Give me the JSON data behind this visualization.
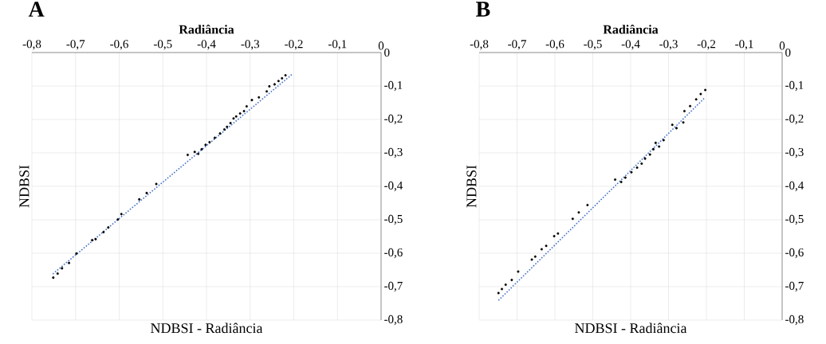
{
  "chart_data": [
    {
      "type": "scatter",
      "title": "Radiância",
      "xlabel": "NDBSI - Radiância",
      "ylabel": "NDBSI",
      "annotations": [
        "A"
      ],
      "grid": true,
      "marker": "circle",
      "xlim": [
        -0.8,
        0
      ],
      "ylim": [
        -0.8,
        0
      ],
      "xticks": [
        {
          "value": -0.8,
          "label": "-0,8"
        },
        {
          "value": -0.7,
          "label": "-0,7"
        },
        {
          "value": -0.6,
          "label": "-0,6"
        },
        {
          "value": -0.5,
          "label": "-0,5"
        },
        {
          "value": -0.4,
          "label": "-0,4"
        },
        {
          "value": -0.3,
          "label": "-0,3"
        },
        {
          "value": -0.2,
          "label": "-0,2"
        },
        {
          "value": -0.1,
          "label": "-0,1"
        },
        0
      ],
      "yticks": [
        {
          "value": -0.8,
          "label": "-0,8"
        },
        {
          "value": -0.7,
          "label": "-0,7"
        },
        {
          "value": -0.6,
          "label": "-0,6"
        },
        {
          "value": -0.5,
          "label": "-0,5"
        },
        {
          "value": -0.4,
          "label": "-0,4"
        },
        {
          "value": -0.3,
          "label": "-0,3"
        },
        {
          "value": -0.2,
          "label": "-0,2"
        },
        {
          "value": -0.1,
          "label": "-0,1"
        },
        0
      ],
      "series": [
        {
          "type": "scatter",
          "color": "#000000",
          "x": [
            -0.751,
            -0.741,
            -0.731,
            -0.715,
            -0.698,
            -0.662,
            -0.654,
            -0.636,
            -0.625,
            -0.603,
            -0.595,
            -0.554,
            -0.537,
            -0.515,
            -0.443,
            -0.427,
            -0.419,
            -0.411,
            -0.402,
            -0.393,
            -0.381,
            -0.369,
            -0.359,
            -0.353,
            -0.345,
            -0.338,
            -0.332,
            -0.323,
            -0.314,
            -0.308,
            -0.296,
            -0.28,
            -0.262,
            -0.256,
            -0.244,
            -0.235,
            -0.227,
            -0.219
          ],
          "values": [
            -0.673,
            -0.661,
            -0.645,
            -0.629,
            -0.601,
            -0.561,
            -0.558,
            -0.537,
            -0.523,
            -0.499,
            -0.483,
            -0.439,
            -0.42,
            -0.393,
            -0.306,
            -0.297,
            -0.303,
            -0.289,
            -0.276,
            -0.268,
            -0.255,
            -0.242,
            -0.23,
            -0.222,
            -0.211,
            -0.197,
            -0.191,
            -0.182,
            -0.175,
            -0.161,
            -0.142,
            -0.134,
            -0.116,
            -0.101,
            -0.095,
            -0.085,
            -0.077,
            -0.068
          ]
        },
        {
          "type": "line",
          "color": "#4472c4",
          "line_style": "dotted",
          "marker": "none",
          "x": [
            -0.752,
            -0.204
          ],
          "values": [
            -0.662,
            -0.065
          ]
        }
      ]
    },
    {
      "type": "scatter",
      "title": "Radiância",
      "xlabel": "NDBSI - Radiância",
      "ylabel": "NDBSI",
      "annotations": [
        "B"
      ],
      "grid": true,
      "marker": "circle",
      "xlim": [
        -0.8,
        0
      ],
      "ylim": [
        -0.8,
        0
      ],
      "xticks": [
        {
          "value": -0.8,
          "label": "-0,8"
        },
        {
          "value": -0.7,
          "label": "-0,7"
        },
        {
          "value": -0.6,
          "label": "-0,6"
        },
        {
          "value": -0.5,
          "label": "-0,5"
        },
        {
          "value": -0.4,
          "label": "-0,4"
        },
        {
          "value": -0.3,
          "label": "-0,3"
        },
        {
          "value": -0.2,
          "label": "-0,2"
        },
        {
          "value": -0.1,
          "label": "-0,1"
        },
        0
      ],
      "yticks": [
        {
          "value": -0.8,
          "label": "-0,8"
        },
        {
          "value": -0.7,
          "label": "-0,7"
        },
        {
          "value": -0.6,
          "label": "-0,6"
        },
        {
          "value": -0.5,
          "label": "-0,5"
        },
        {
          "value": -0.4,
          "label": "-0,4"
        },
        {
          "value": -0.3,
          "label": "-0,3"
        },
        {
          "value": -0.2,
          "label": "-0,2"
        },
        {
          "value": -0.1,
          "label": "-0,1"
        },
        0
      ],
      "series": [
        {
          "type": "scatter",
          "color": "#000000",
          "x": [
            -0.749,
            -0.74,
            -0.73,
            -0.714,
            -0.697,
            -0.661,
            -0.652,
            -0.635,
            -0.623,
            -0.602,
            -0.592,
            -0.553,
            -0.537,
            -0.514,
            -0.441,
            -0.425,
            -0.414,
            -0.398,
            -0.383,
            -0.371,
            -0.362,
            -0.349,
            -0.34,
            -0.334,
            -0.325,
            -0.313,
            -0.29,
            -0.279,
            -0.261,
            -0.258,
            -0.243,
            -0.227,
            -0.215,
            -0.203
          ],
          "values": [
            -0.719,
            -0.707,
            -0.694,
            -0.68,
            -0.655,
            -0.619,
            -0.61,
            -0.588,
            -0.578,
            -0.549,
            -0.541,
            -0.497,
            -0.478,
            -0.456,
            -0.38,
            -0.387,
            -0.374,
            -0.358,
            -0.344,
            -0.332,
            -0.317,
            -0.305,
            -0.289,
            -0.27,
            -0.281,
            -0.262,
            -0.216,
            -0.226,
            -0.209,
            -0.175,
            -0.16,
            -0.14,
            -0.124,
            -0.112
          ]
        },
        {
          "type": "line",
          "color": "#4472c4",
          "line_style": "dotted",
          "marker": "none",
          "x": [
            -0.749,
            -0.205
          ],
          "values": [
            -0.741,
            -0.136
          ]
        }
      ]
    }
  ]
}
